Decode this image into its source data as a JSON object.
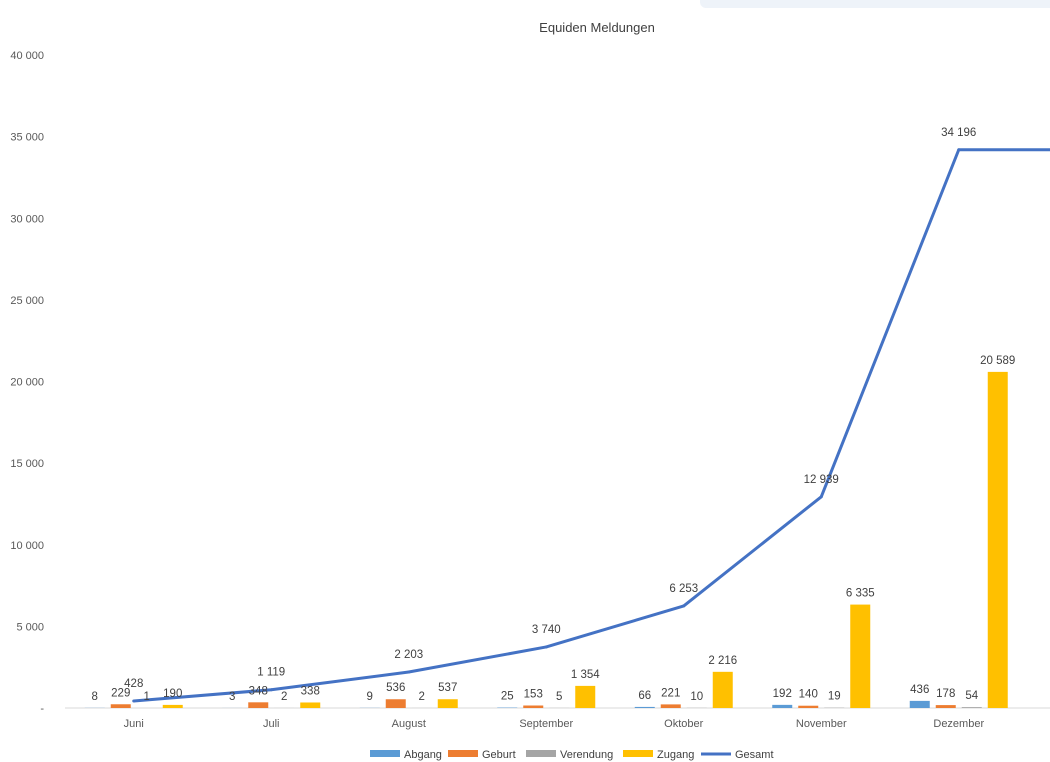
{
  "chart_data": {
    "type": "bar",
    "title": "Equiden Meldungen",
    "categories": [
      "Juni",
      "Juli",
      "August",
      "September",
      "Oktober",
      "November",
      "Dezember"
    ],
    "ylim": [
      0,
      40000
    ],
    "yticks": [
      0,
      5000,
      10000,
      15000,
      20000,
      25000,
      30000,
      35000,
      40000
    ],
    "ytick_labels": [
      "-",
      "5 000",
      "10 000",
      "15 000",
      "20 000",
      "25 000",
      "30 000",
      "35 000",
      "40 000"
    ],
    "grid": false,
    "legend_position": "bottom",
    "series": [
      {
        "name": "Abgang",
        "type": "bar",
        "color": "#5B9BD5",
        "values": [
          8,
          3,
          9,
          25,
          66,
          192,
          436
        ],
        "labels": [
          "8",
          "3",
          "9",
          "25",
          "66",
          "192",
          "436"
        ]
      },
      {
        "name": "Geburt",
        "type": "bar",
        "color": "#ED7D31",
        "values": [
          229,
          348,
          536,
          153,
          221,
          140,
          178
        ],
        "labels": [
          "229",
          "348",
          "536",
          "153",
          "221",
          "140",
          "178"
        ]
      },
      {
        "name": "Verendung",
        "type": "bar",
        "color": "#A5A5A5",
        "values": [
          1,
          2,
          2,
          5,
          10,
          19,
          54
        ],
        "labels": [
          "1",
          "2",
          "2",
          "5",
          "10",
          "19",
          "54"
        ]
      },
      {
        "name": "Zugang",
        "type": "bar",
        "color": "#FFC000",
        "values": [
          190,
          338,
          537,
          1354,
          2216,
          6335,
          20589
        ],
        "labels": [
          "190",
          "338",
          "537",
          "1 354",
          "2 216",
          "6 335",
          "20 589"
        ]
      },
      {
        "name": "Gesamt",
        "type": "line",
        "color": "#4472C4",
        "values": [
          428,
          1119,
          2203,
          3740,
          6253,
          12939,
          34196
        ],
        "labels": [
          "428",
          "1 119",
          "2 203",
          "3 740",
          "6 253",
          "12 939",
          "34 196"
        ]
      }
    ]
  }
}
